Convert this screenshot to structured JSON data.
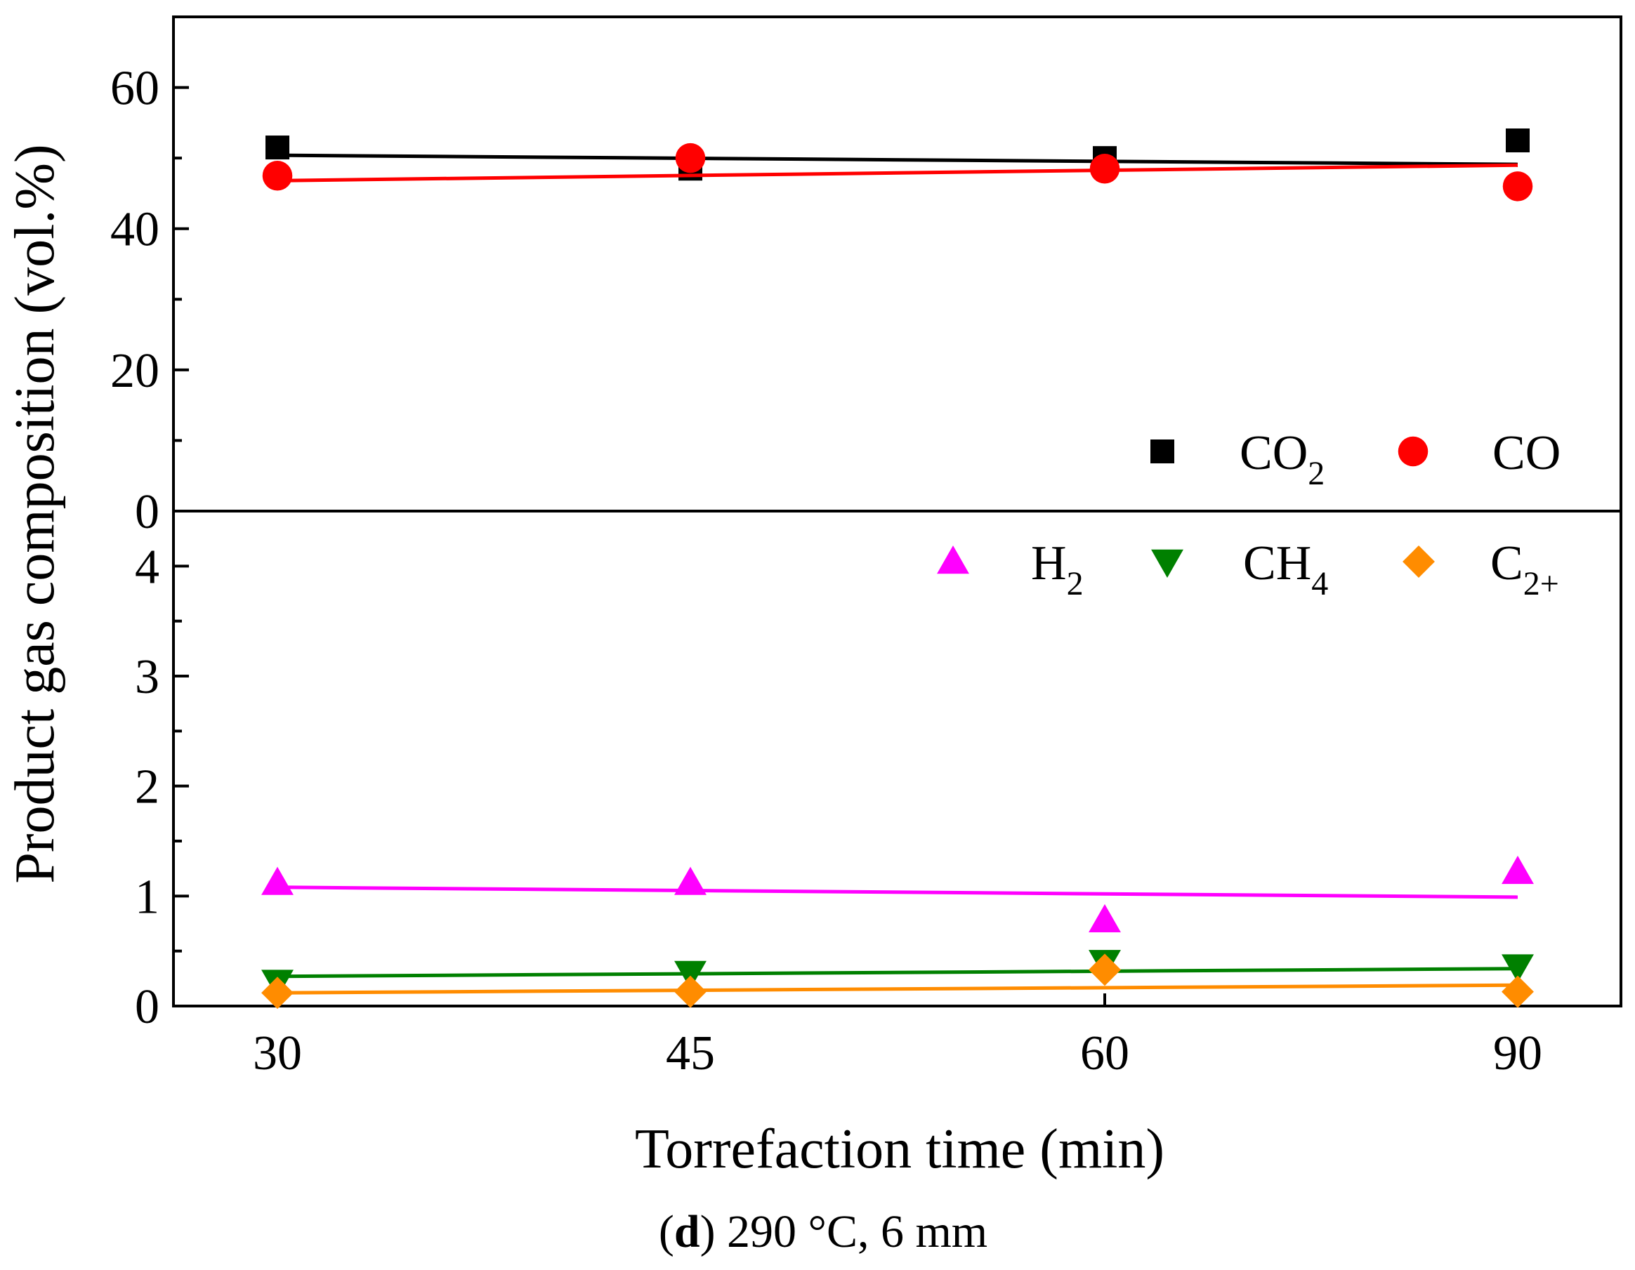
{
  "chart_data": {
    "type": "scatter",
    "ylabel": "Product gas composition (vol.%)",
    "xlabel": "Torrefaction time (min)",
    "caption": {
      "letter": "d",
      "rest": "290 °C, 6 mm"
    },
    "categories": [
      "30",
      "45",
      "60",
      "90"
    ],
    "panels": [
      {
        "name": "upper",
        "ylim": [
          0,
          70
        ],
        "yticks": [
          "0",
          "20",
          "40",
          "60"
        ],
        "series": [
          {
            "key": "co2",
            "name": "CO",
            "sub": "2",
            "marker": "square",
            "color": "#000000",
            "values": [
              51.5,
              48.5,
              50.0,
              52.5
            ],
            "fit": [
              50.4,
              49.1
            ]
          },
          {
            "key": "co",
            "name": "CO",
            "sub": "",
            "marker": "circle",
            "color": "#ff0000",
            "values": [
              47.5,
              50.0,
              48.5,
              46.0
            ],
            "fit": [
              46.8,
              49.0
            ]
          }
        ]
      },
      {
        "name": "lower",
        "ylim": [
          0,
          4.5
        ],
        "yticks": [
          "0",
          "1",
          "2",
          "3",
          "4"
        ],
        "series": [
          {
            "key": "h2",
            "name": "H",
            "sub": "2",
            "marker": "triangle-up",
            "color": "#ff00ff",
            "values": [
              1.12,
              1.12,
              0.78,
              1.22
            ],
            "fit": [
              1.08,
              0.99
            ]
          },
          {
            "key": "ch4",
            "name": "CH",
            "sub": "4",
            "marker": "triangle-down",
            "color": "#008000",
            "values": [
              0.22,
              0.3,
              0.4,
              0.36
            ],
            "fit": [
              0.27,
              0.34
            ]
          },
          {
            "key": "c2",
            "name": "C",
            "sub": "2+",
            "marker": "diamond",
            "color": "#ff8c00",
            "values": [
              0.12,
              0.13,
              0.33,
              0.13
            ],
            "fit": [
              0.12,
              0.19
            ]
          }
        ]
      }
    ]
  }
}
